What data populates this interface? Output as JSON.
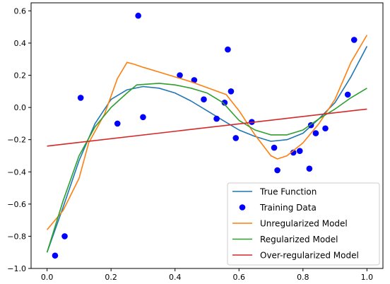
{
  "chart_data": {
    "type": "line",
    "title": "",
    "xlabel": "",
    "ylabel": "",
    "xlim": [
      -0.05,
      1.05
    ],
    "ylim": [
      -1.0,
      0.65
    ],
    "xticks": [
      0.0,
      0.2,
      0.4,
      0.6,
      0.8,
      1.0
    ],
    "xtick_labels": [
      "0.0",
      "0.2",
      "0.4",
      "0.6",
      "0.8",
      "1.0"
    ],
    "yticks": [
      -1.0,
      -0.8,
      -0.6,
      -0.4,
      -0.2,
      0.0,
      0.2,
      0.4,
      0.6
    ],
    "ytick_labels": [
      "−1.0",
      "−0.8",
      "−0.6",
      "−0.4",
      "−0.2",
      "0.0",
      "0.2",
      "0.4",
      "0.6"
    ],
    "grid": false,
    "legend_position": "bottom-right",
    "series": [
      {
        "name": "True Function",
        "kind": "line",
        "color": "#1f77b4",
        "x": [
          0.0,
          0.05,
          0.1,
          0.15,
          0.2,
          0.25,
          0.3,
          0.35,
          0.4,
          0.45,
          0.5,
          0.55,
          0.6,
          0.65,
          0.7,
          0.75,
          0.8,
          0.85,
          0.9,
          0.95,
          1.0
        ],
        "y": [
          -0.9,
          -0.62,
          -0.33,
          -0.1,
          0.05,
          0.11,
          0.13,
          0.12,
          0.09,
          0.04,
          -0.02,
          -0.08,
          -0.14,
          -0.18,
          -0.21,
          -0.2,
          -0.16,
          -0.07,
          0.03,
          0.19,
          0.38
        ]
      },
      {
        "name": "Training Data",
        "kind": "scatter",
        "color": "#0000ff",
        "x": [
          0.025,
          0.055,
          0.105,
          0.22,
          0.285,
          0.3,
          0.415,
          0.46,
          0.49,
          0.53,
          0.555,
          0.565,
          0.575,
          0.59,
          0.64,
          0.71,
          0.72,
          0.77,
          0.79,
          0.82,
          0.825,
          0.84,
          0.87,
          0.94,
          0.96
        ],
        "y": [
          -0.92,
          -0.8,
          0.06,
          -0.1,
          0.57,
          -0.06,
          0.2,
          0.17,
          0.05,
          -0.07,
          0.03,
          0.36,
          0.1,
          -0.19,
          -0.09,
          -0.25,
          -0.39,
          -0.28,
          -0.27,
          -0.38,
          -0.11,
          -0.16,
          -0.13,
          0.08,
          0.42
        ]
      },
      {
        "name": "Unregularized Model",
        "kind": "line",
        "color": "#ff7f0e",
        "x": [
          0.0,
          0.05,
          0.1,
          0.13,
          0.18,
          0.22,
          0.25,
          0.27,
          0.3,
          0.35,
          0.45,
          0.56,
          0.6,
          0.65,
          0.7,
          0.72,
          0.75,
          0.8,
          0.85,
          0.9,
          0.95,
          1.0
        ],
        "y": [
          -0.76,
          -0.64,
          -0.44,
          -0.22,
          -0.04,
          0.18,
          0.28,
          0.27,
          0.25,
          0.22,
          0.16,
          0.08,
          -0.02,
          -0.17,
          -0.3,
          -0.32,
          -0.3,
          -0.22,
          -0.1,
          0.05,
          0.28,
          0.45
        ]
      },
      {
        "name": "Regularized Model",
        "kind": "line",
        "color": "#2ca02c",
        "x": [
          0.0,
          0.05,
          0.1,
          0.15,
          0.2,
          0.25,
          0.28,
          0.35,
          0.4,
          0.45,
          0.5,
          0.55,
          0.6,
          0.65,
          0.7,
          0.75,
          0.8,
          0.85,
          0.9,
          0.95,
          1.0
        ],
        "y": [
          -0.9,
          -0.58,
          -0.3,
          -0.12,
          0.0,
          0.09,
          0.14,
          0.15,
          0.14,
          0.12,
          0.09,
          0.03,
          -0.08,
          -0.14,
          -0.17,
          -0.17,
          -0.14,
          -0.07,
          -0.01,
          0.06,
          0.12
        ]
      },
      {
        "name": "Over-regularized Model",
        "kind": "line",
        "color": "#d62728",
        "x": [
          0.0,
          1.0
        ],
        "y": [
          -0.24,
          -0.01
        ]
      }
    ]
  }
}
